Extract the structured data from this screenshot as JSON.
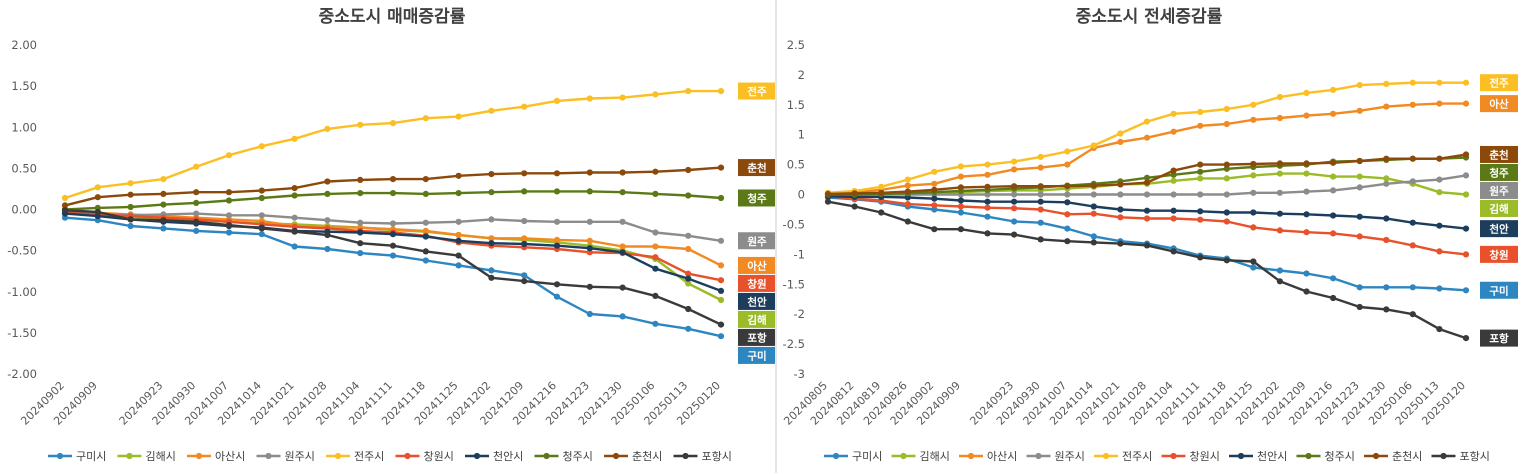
{
  "chart_data": [
    {
      "type": "line",
      "title": "중소도시 매매증감률",
      "ylim": [
        -2.0,
        2.0
      ],
      "yticks": [
        2.0,
        1.5,
        1.0,
        0.5,
        0.0,
        -0.5,
        -1.0,
        -1.5,
        -2.0
      ],
      "ytick_labels": [
        "2.00",
        "1.50",
        "1.00",
        "0.50",
        "0.00",
        "-0.50",
        "-1.00",
        "-1.50",
        "-2.00"
      ],
      "x": [
        "20240902",
        "20240909",
        "20240916",
        "20240923",
        "20240930",
        "20241007",
        "20241014",
        "20241021",
        "20241028",
        "20241104",
        "20241111",
        "20241118",
        "20241125",
        "20241202",
        "20241209",
        "20241216",
        "20241223",
        "20241230",
        "20250106",
        "20250113",
        "20250120"
      ],
      "xtick_labels": [
        "20240902",
        "20240909",
        "20240923",
        "20240930",
        "20241007",
        "20241014",
        "20241021",
        "20241028",
        "20241104",
        "20241111",
        "20241118",
        "20241125",
        "20241202",
        "20241209",
        "20241216",
        "20241223",
        "20241230",
        "20250106",
        "20250113",
        "20250120"
      ],
      "legend_position": "bottom",
      "series": [
        {
          "name": "구미시",
          "tag": "구미",
          "color": "#2e86c1",
          "values": [
            -0.1,
            -0.13,
            -0.2,
            -0.23,
            -0.26,
            -0.28,
            -0.3,
            -0.45,
            -0.48,
            -0.53,
            -0.56,
            -0.62,
            -0.68,
            -0.74,
            -0.8,
            -1.06,
            -1.27,
            -1.3,
            -1.39,
            -1.45,
            -1.54
          ]
        },
        {
          "name": "김해시",
          "tag": "김해",
          "color": "#9bbb29",
          "values": [
            -0.04,
            -0.06,
            -0.09,
            -0.11,
            -0.13,
            -0.15,
            -0.17,
            -0.18,
            -0.2,
            -0.22,
            -0.25,
            -0.27,
            -0.31,
            -0.35,
            -0.37,
            -0.4,
            -0.44,
            -0.5,
            -0.6,
            -0.9,
            -1.1
          ]
        },
        {
          "name": "아산시",
          "tag": "아산",
          "color": "#f18a22",
          "values": [
            -0.02,
            -0.04,
            -0.06,
            -0.08,
            -0.1,
            -0.12,
            -0.14,
            -0.2,
            -0.22,
            -0.22,
            -0.24,
            -0.26,
            -0.31,
            -0.35,
            -0.35,
            -0.37,
            -0.38,
            -0.45,
            -0.45,
            -0.48,
            -0.68
          ]
        },
        {
          "name": "원주시",
          "tag": "원주",
          "color": "#8c8c8c",
          "values": [
            -0.03,
            -0.05,
            -0.07,
            -0.06,
            -0.05,
            -0.07,
            -0.07,
            -0.1,
            -0.13,
            -0.16,
            -0.17,
            -0.16,
            -0.15,
            -0.12,
            -0.14,
            -0.15,
            -0.15,
            -0.15,
            -0.28,
            -0.32,
            -0.38
          ]
        },
        {
          "name": "전주시",
          "tag": "전주",
          "color": "#fbbf24",
          "values": [
            0.14,
            0.27,
            0.32,
            0.37,
            0.52,
            0.66,
            0.77,
            0.86,
            0.98,
            1.03,
            1.05,
            1.11,
            1.13,
            1.2,
            1.25,
            1.32,
            1.35,
            1.36,
            1.4,
            1.44,
            1.44
          ]
        },
        {
          "name": "창원시",
          "tag": "창원",
          "color": "#e8512b",
          "values": [
            -0.04,
            -0.06,
            -0.08,
            -0.1,
            -0.12,
            -0.15,
            -0.18,
            -0.21,
            -0.23,
            -0.26,
            -0.28,
            -0.32,
            -0.4,
            -0.44,
            -0.46,
            -0.48,
            -0.52,
            -0.53,
            -0.58,
            -0.78,
            -0.86
          ]
        },
        {
          "name": "천안시",
          "tag": "천안",
          "color": "#1d3d5c",
          "values": [
            -0.05,
            -0.08,
            -0.12,
            -0.15,
            -0.17,
            -0.2,
            -0.22,
            -0.26,
            -0.27,
            -0.28,
            -0.3,
            -0.33,
            -0.38,
            -0.41,
            -0.42,
            -0.44,
            -0.47,
            -0.52,
            -0.72,
            -0.84,
            -0.99
          ]
        },
        {
          "name": "청주시",
          "tag": "청주",
          "color": "#5b7a17",
          "values": [
            0.0,
            0.02,
            0.03,
            0.06,
            0.08,
            0.11,
            0.14,
            0.17,
            0.19,
            0.2,
            0.2,
            0.19,
            0.2,
            0.21,
            0.22,
            0.22,
            0.22,
            0.21,
            0.19,
            0.17,
            0.14
          ]
        },
        {
          "name": "춘천시",
          "tag": "춘천",
          "color": "#8b4a0c",
          "values": [
            0.05,
            0.15,
            0.18,
            0.19,
            0.21,
            0.21,
            0.23,
            0.26,
            0.34,
            0.36,
            0.37,
            0.37,
            0.41,
            0.43,
            0.44,
            0.44,
            0.45,
            0.45,
            0.46,
            0.48,
            0.51
          ]
        },
        {
          "name": "포항시",
          "tag": "포항",
          "color": "#3a3a3a",
          "values": [
            -0.01,
            -0.03,
            -0.12,
            -0.13,
            -0.15,
            -0.19,
            -0.23,
            -0.27,
            -0.31,
            -0.41,
            -0.44,
            -0.51,
            -0.56,
            -0.83,
            -0.87,
            -0.91,
            -0.94,
            -0.95,
            -1.05,
            -1.21,
            -1.4
          ]
        }
      ]
    },
    {
      "type": "line",
      "title": "중소도시 전세증감률",
      "ylim": [
        -3,
        2.5
      ],
      "yticks": [
        2.5,
        2,
        1.5,
        1,
        0.5,
        0,
        -0.5,
        -1,
        -1.5,
        -2,
        -2.5,
        -3
      ],
      "ytick_labels": [
        "2.5",
        "2",
        "1.5",
        "1",
        "0.5",
        "0",
        "-0.5",
        "-1",
        "-1.5",
        "-2",
        "-2.5",
        "-3"
      ],
      "x": [
        "20240805",
        "20240812",
        "20240819",
        "20240826",
        "20240902",
        "20240909",
        "20240916",
        "20240923",
        "20240930",
        "20241007",
        "20241014",
        "20241021",
        "20241028",
        "20241104",
        "20241111",
        "20241118",
        "20241125",
        "20241202",
        "20241209",
        "20241216",
        "20241223",
        "20241230",
        "20250106",
        "20250113",
        "20250120"
      ],
      "xtick_labels": [
        "20240805",
        "20240812",
        "20240819",
        "20240826",
        "20240902",
        "20240909",
        "20240923",
        "20240930",
        "20241007",
        "20241014",
        "20241021",
        "20241028",
        "20241104",
        "20241111",
        "20241118",
        "20241125",
        "20241202",
        "20241209",
        "20241216",
        "20241223",
        "20241230",
        "20250106",
        "20250113",
        "20250120"
      ],
      "legend_position": "bottom",
      "series": [
        {
          "name": "구미시",
          "tag": "구미",
          "color": "#2e86c1",
          "values": [
            -0.05,
            -0.08,
            -0.12,
            -0.2,
            -0.25,
            -0.3,
            -0.37,
            -0.45,
            -0.47,
            -0.57,
            -0.7,
            -0.78,
            -0.82,
            -0.9,
            -1.02,
            -1.07,
            -1.22,
            -1.27,
            -1.32,
            -1.4,
            -1.55,
            -1.55,
            -1.55,
            -1.57,
            -1.6
          ]
        },
        {
          "name": "김해시",
          "tag": "김해",
          "color": "#9bbb29",
          "values": [
            0.0,
            0.0,
            0.02,
            0.03,
            0.03,
            0.04,
            0.06,
            0.07,
            0.07,
            0.1,
            0.13,
            0.17,
            0.18,
            0.23,
            0.27,
            0.27,
            0.32,
            0.35,
            0.35,
            0.3,
            0.3,
            0.27,
            0.18,
            0.04,
            0.0
          ]
        },
        {
          "name": "아산시",
          "tag": "아산",
          "color": "#f18a22",
          "values": [
            0.02,
            0.04,
            0.08,
            0.15,
            0.18,
            0.3,
            0.33,
            0.42,
            0.45,
            0.5,
            0.78,
            0.88,
            0.95,
            1.05,
            1.15,
            1.18,
            1.25,
            1.28,
            1.32,
            1.35,
            1.4,
            1.47,
            1.5,
            1.52,
            1.52
          ]
        },
        {
          "name": "원주시",
          "tag": "원주",
          "color": "#8c8c8c",
          "values": [
            0.0,
            0.0,
            0.0,
            0.0,
            0.0,
            0.0,
            0.0,
            0.0,
            0.0,
            0.0,
            0.0,
            0.0,
            0.0,
            0.0,
            0.0,
            0.0,
            0.03,
            0.03,
            0.05,
            0.07,
            0.12,
            0.18,
            0.22,
            0.25,
            0.32
          ]
        },
        {
          "name": "전주시",
          "tag": "전주",
          "color": "#fbbf24",
          "values": [
            0.03,
            0.06,
            0.13,
            0.25,
            0.38,
            0.47,
            0.5,
            0.55,
            0.63,
            0.72,
            0.82,
            1.02,
            1.22,
            1.35,
            1.38,
            1.43,
            1.5,
            1.63,
            1.7,
            1.75,
            1.83,
            1.85,
            1.87,
            1.87,
            1.87
          ]
        },
        {
          "name": "창원시",
          "tag": "창원",
          "color": "#e8512b",
          "values": [
            -0.03,
            -0.07,
            -0.1,
            -0.16,
            -0.18,
            -0.2,
            -0.22,
            -0.23,
            -0.25,
            -0.33,
            -0.32,
            -0.38,
            -0.4,
            -0.4,
            -0.42,
            -0.45,
            -0.55,
            -0.6,
            -0.63,
            -0.65,
            -0.7,
            -0.76,
            -0.85,
            -0.95,
            -1.0
          ]
        },
        {
          "name": "천안시",
          "tag": "천안",
          "color": "#1d3d5c",
          "values": [
            -0.03,
            -0.04,
            -0.04,
            -0.05,
            -0.07,
            -0.1,
            -0.12,
            -0.12,
            -0.12,
            -0.13,
            -0.2,
            -0.25,
            -0.27,
            -0.27,
            -0.28,
            -0.3,
            -0.3,
            -0.32,
            -0.33,
            -0.35,
            -0.37,
            -0.4,
            -0.47,
            -0.52,
            -0.57
          ]
        },
        {
          "name": "청주시",
          "tag": "청주",
          "color": "#5b7a17",
          "values": [
            0.0,
            0.0,
            0.01,
            0.02,
            0.04,
            0.06,
            0.08,
            0.1,
            0.12,
            0.15,
            0.18,
            0.22,
            0.28,
            0.33,
            0.38,
            0.43,
            0.46,
            0.48,
            0.5,
            0.55,
            0.56,
            0.58,
            0.6,
            0.6,
            0.62
          ]
        },
        {
          "name": "춘천시",
          "tag": "춘천",
          "color": "#8b4a0c",
          "values": [
            0.01,
            0.02,
            0.03,
            0.05,
            0.08,
            0.12,
            0.13,
            0.14,
            0.14,
            0.14,
            0.15,
            0.17,
            0.2,
            0.4,
            0.5,
            0.5,
            0.51,
            0.52,
            0.52,
            0.53,
            0.56,
            0.6,
            0.6,
            0.6,
            0.67
          ]
        },
        {
          "name": "포항시",
          "tag": "포항",
          "color": "#3a3a3a",
          "values": [
            -0.12,
            -0.2,
            -0.3,
            -0.45,
            -0.58,
            -0.58,
            -0.65,
            -0.67,
            -0.75,
            -0.78,
            -0.8,
            -0.82,
            -0.85,
            -0.95,
            -1.05,
            -1.1,
            -1.12,
            -1.45,
            -1.62,
            -1.73,
            -1.88,
            -1.92,
            -2.0,
            -2.25,
            -2.4
          ]
        }
      ]
    }
  ]
}
